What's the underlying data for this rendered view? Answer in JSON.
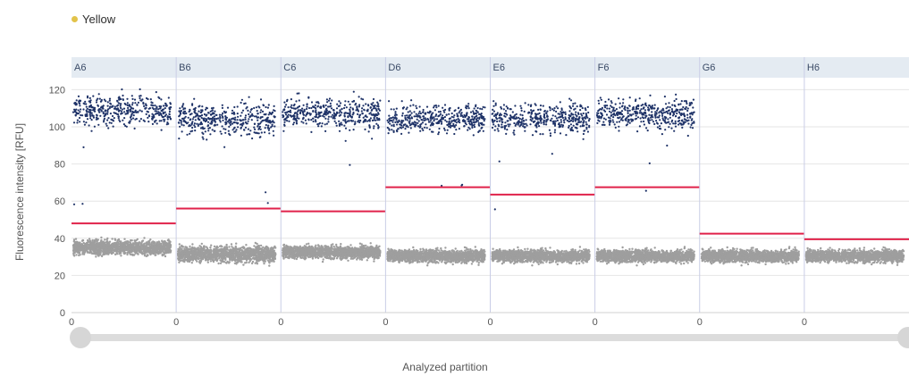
{
  "legend": {
    "label": "Yellow",
    "color": "#e2c34a"
  },
  "chart_data": {
    "type": "scatter",
    "ylabel": "Fluorescence intensity [RFU]",
    "xlabel": "Analyzed partition",
    "ylim": [
      0,
      125
    ],
    "yticks": [
      0,
      20,
      40,
      60,
      80,
      100,
      120
    ],
    "grid": true,
    "wells": [
      {
        "name": "A6",
        "x_start_label": "0",
        "threshold": 48,
        "positive_cluster": [
          99,
          118
        ],
        "negative_cluster": [
          31,
          39
        ]
      },
      {
        "name": "B6",
        "x_start_label": "0",
        "threshold": 56,
        "positive_cluster": [
          94,
          114
        ],
        "negative_cluster": [
          27,
          36
        ]
      },
      {
        "name": "C6",
        "x_start_label": "0",
        "threshold": 54.5,
        "positive_cluster": [
          98,
          117
        ],
        "negative_cluster": [
          29,
          36
        ]
      },
      {
        "name": "D6",
        "x_start_label": "0",
        "threshold": 67.5,
        "positive_cluster": [
          96,
          113
        ],
        "negative_cluster": [
          27,
          34
        ]
      },
      {
        "name": "E6",
        "x_start_label": "0",
        "threshold": 63.5,
        "positive_cluster": [
          96,
          113
        ],
        "negative_cluster": [
          27,
          34
        ]
      },
      {
        "name": "F6",
        "x_start_label": "0",
        "threshold": 67.5,
        "positive_cluster": [
          98,
          116
        ],
        "negative_cluster": [
          27,
          34
        ]
      },
      {
        "name": "G6",
        "x_start_label": "0",
        "threshold": 42.5,
        "positive_cluster": null,
        "negative_cluster": [
          27,
          34
        ]
      },
      {
        "name": "H6",
        "x_start_label": "0",
        "threshold": 39.5,
        "positive_cluster": null,
        "negative_cluster": [
          27,
          34
        ]
      }
    ],
    "colors": {
      "positive": "#1f3368",
      "negative": "#9e9e9e",
      "threshold": "#e0224a",
      "header": "#e4ebf2",
      "grid": "#e6e6e6",
      "separator": "#c9cde6"
    }
  },
  "slider": {
    "range": [
      0,
      1
    ]
  }
}
